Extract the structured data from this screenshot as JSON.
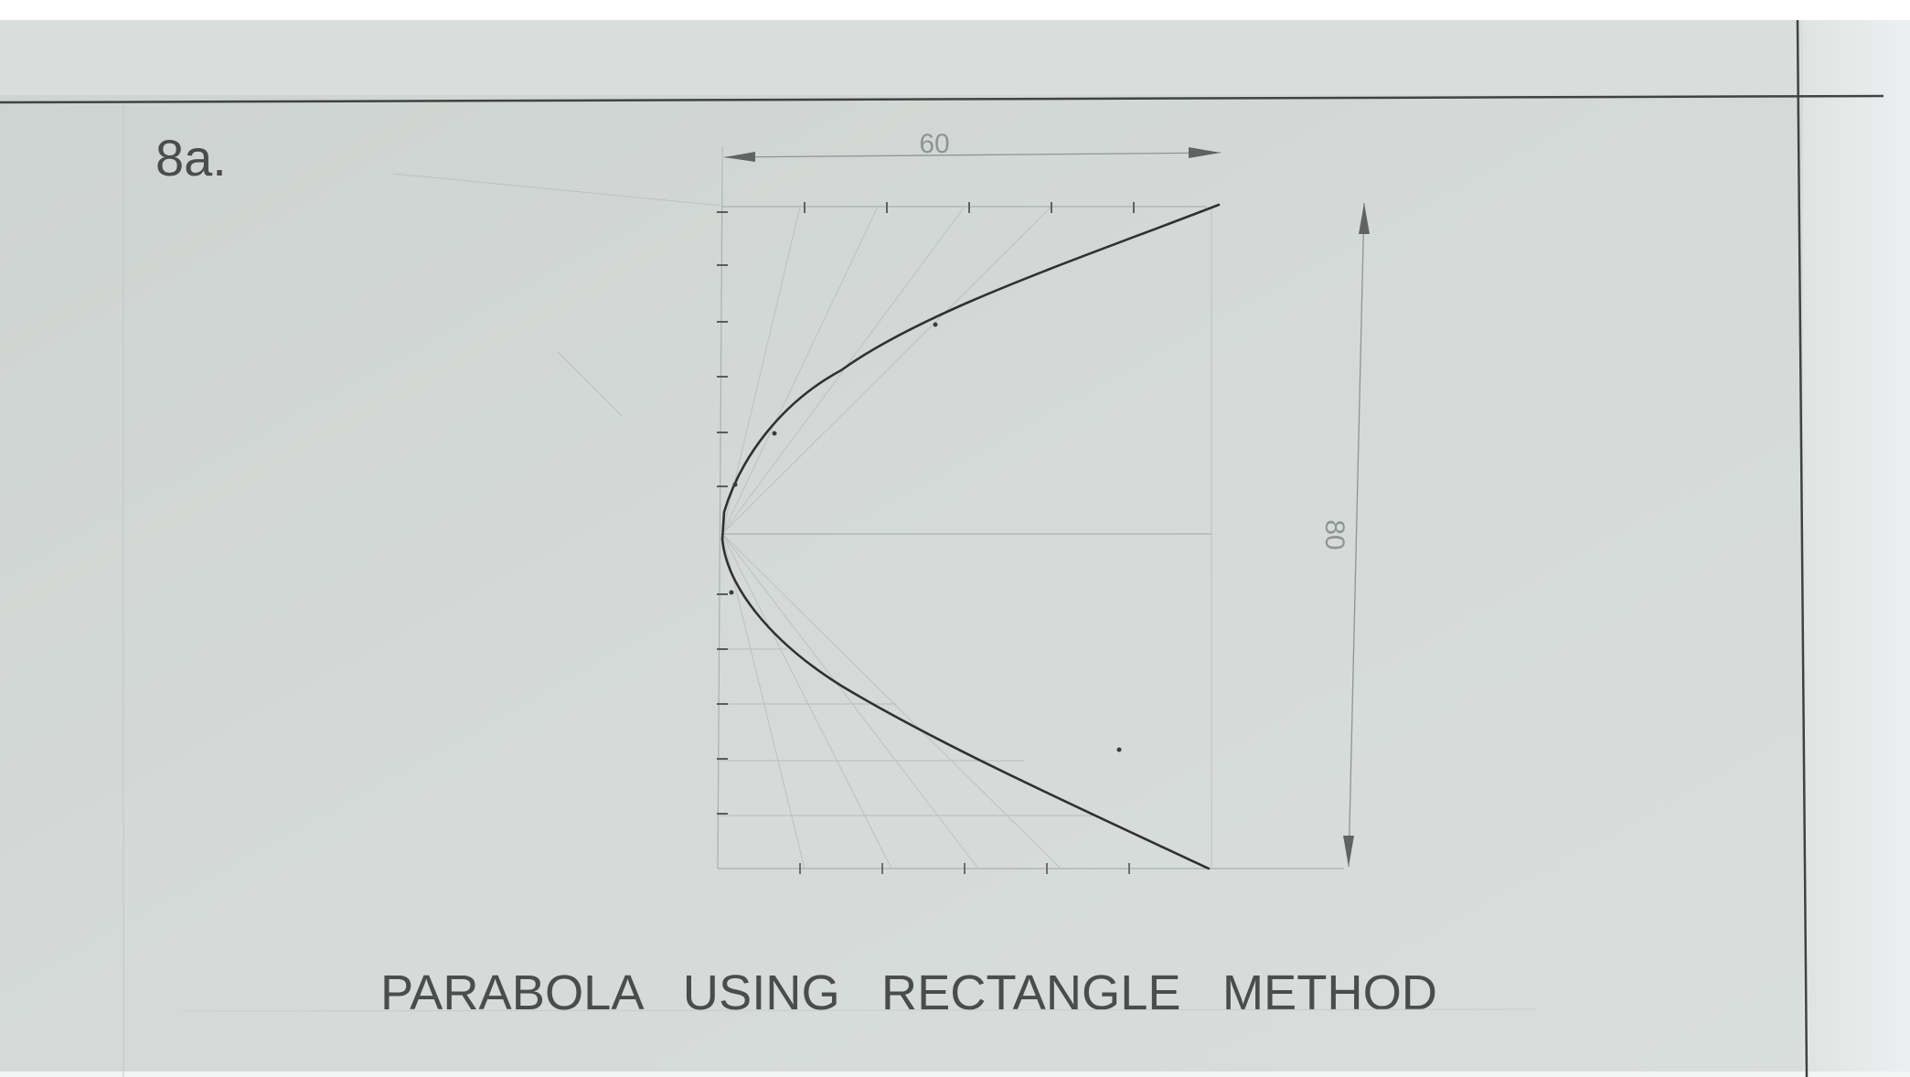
{
  "drawing": {
    "exercise_label": "8a.",
    "title": "PARABOLA   USING   RECTANGLE   METHOD",
    "dimension_width": "60",
    "dimension_height": "80"
  },
  "colors": {
    "paper": "#d3d8d6",
    "paper_light": "#e2e6e4",
    "graphite_dark": "#3c3f3e",
    "graphite_light": "#a9b0ad"
  }
}
